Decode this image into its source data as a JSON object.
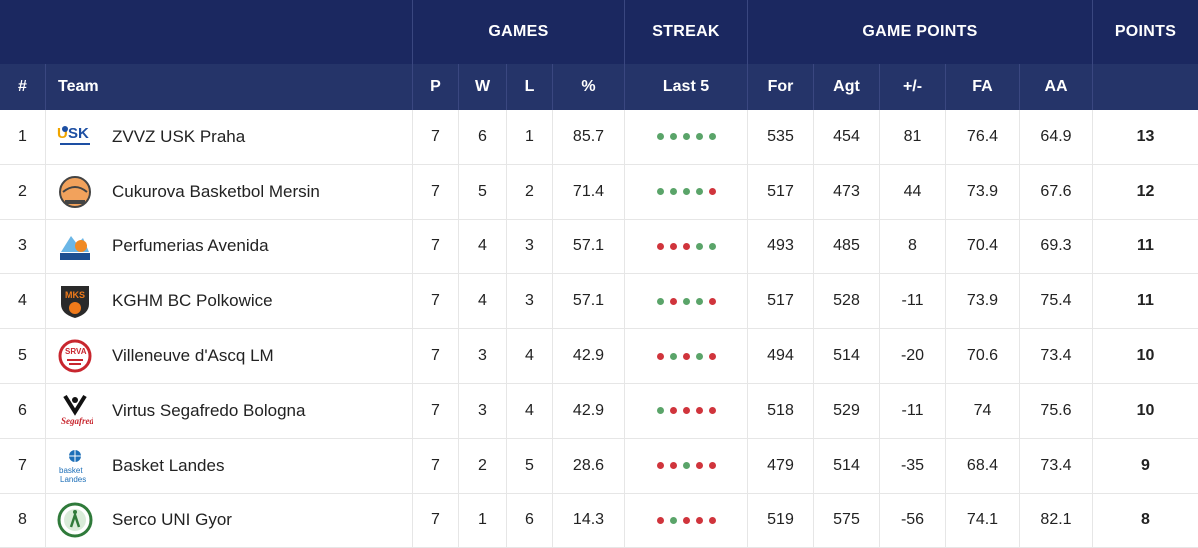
{
  "header": {
    "groups": {
      "games": "GAMES",
      "streak": "STREAK",
      "game_points": "GAME POINTS",
      "points": "POINTS"
    },
    "columns": {
      "rank": "#",
      "team": "Team",
      "p": "P",
      "w": "W",
      "l": "L",
      "pct": "%",
      "last5": "Last 5",
      "for": "For",
      "agt": "Agt",
      "diff": "+/-",
      "fa": "FA",
      "aa": "AA"
    }
  },
  "colors": {
    "win": "#5aa469",
    "loss": "#d0343c",
    "header_bg": "#1b2860",
    "subheader_bg": "#253469"
  },
  "rows": [
    {
      "rank": "1",
      "team": "ZVVZ USK Praha",
      "logo_icon": "usk-praha-logo-icon",
      "p": "7",
      "w": "6",
      "l": "1",
      "pct": "85.7",
      "last5": [
        "W",
        "W",
        "W",
        "W",
        "W"
      ],
      "for": "535",
      "agt": "454",
      "diff": "81",
      "fa": "76.4",
      "aa": "64.9",
      "points": "13"
    },
    {
      "rank": "2",
      "team": "Cukurova Basketbol Mersin",
      "logo_icon": "cukurova-logo-icon",
      "p": "7",
      "w": "5",
      "l": "2",
      "pct": "71.4",
      "last5": [
        "W",
        "W",
        "W",
        "W",
        "L"
      ],
      "for": "517",
      "agt": "473",
      "diff": "44",
      "fa": "73.9",
      "aa": "67.6",
      "points": "12"
    },
    {
      "rank": "3",
      "team": "Perfumerias Avenida",
      "logo_icon": "avenida-logo-icon",
      "p": "7",
      "w": "4",
      "l": "3",
      "pct": "57.1",
      "last5": [
        "L",
        "L",
        "L",
        "W",
        "W"
      ],
      "for": "493",
      "agt": "485",
      "diff": "8",
      "fa": "70.4",
      "aa": "69.3",
      "points": "11"
    },
    {
      "rank": "4",
      "team": "KGHM BC Polkowice",
      "logo_icon": "polkowice-logo-icon",
      "p": "7",
      "w": "4",
      "l": "3",
      "pct": "57.1",
      "last5": [
        "W",
        "L",
        "W",
        "W",
        "L"
      ],
      "for": "517",
      "agt": "528",
      "diff": "-11",
      "fa": "73.9",
      "aa": "75.4",
      "points": "11"
    },
    {
      "rank": "5",
      "team": "Villeneuve d'Ascq LM",
      "logo_icon": "villeneuve-logo-icon",
      "p": "7",
      "w": "3",
      "l": "4",
      "pct": "42.9",
      "last5": [
        "L",
        "W",
        "L",
        "W",
        "L"
      ],
      "for": "494",
      "agt": "514",
      "diff": "-20",
      "fa": "70.6",
      "aa": "73.4",
      "points": "10"
    },
    {
      "rank": "6",
      "team": "Virtus Segafredo Bologna",
      "logo_icon": "virtus-bologna-logo-icon",
      "p": "7",
      "w": "3",
      "l": "4",
      "pct": "42.9",
      "last5": [
        "W",
        "L",
        "L",
        "L",
        "L"
      ],
      "for": "518",
      "agt": "529",
      "diff": "-11",
      "fa": "74",
      "aa": "75.6",
      "points": "10"
    },
    {
      "rank": "7",
      "team": "Basket Landes",
      "logo_icon": "basket-landes-logo-icon",
      "p": "7",
      "w": "2",
      "l": "5",
      "pct": "28.6",
      "last5": [
        "L",
        "L",
        "W",
        "L",
        "L"
      ],
      "for": "479",
      "agt": "514",
      "diff": "-35",
      "fa": "68.4",
      "aa": "73.4",
      "points": "9"
    },
    {
      "rank": "8",
      "team": "Serco UNI Gyor",
      "logo_icon": "uni-gyor-logo-icon",
      "p": "7",
      "w": "1",
      "l": "6",
      "pct": "14.3",
      "last5": [
        "L",
        "W",
        "L",
        "L",
        "L"
      ],
      "for": "519",
      "agt": "575",
      "diff": "-56",
      "fa": "74.1",
      "aa": "82.1",
      "points": "8"
    }
  ]
}
